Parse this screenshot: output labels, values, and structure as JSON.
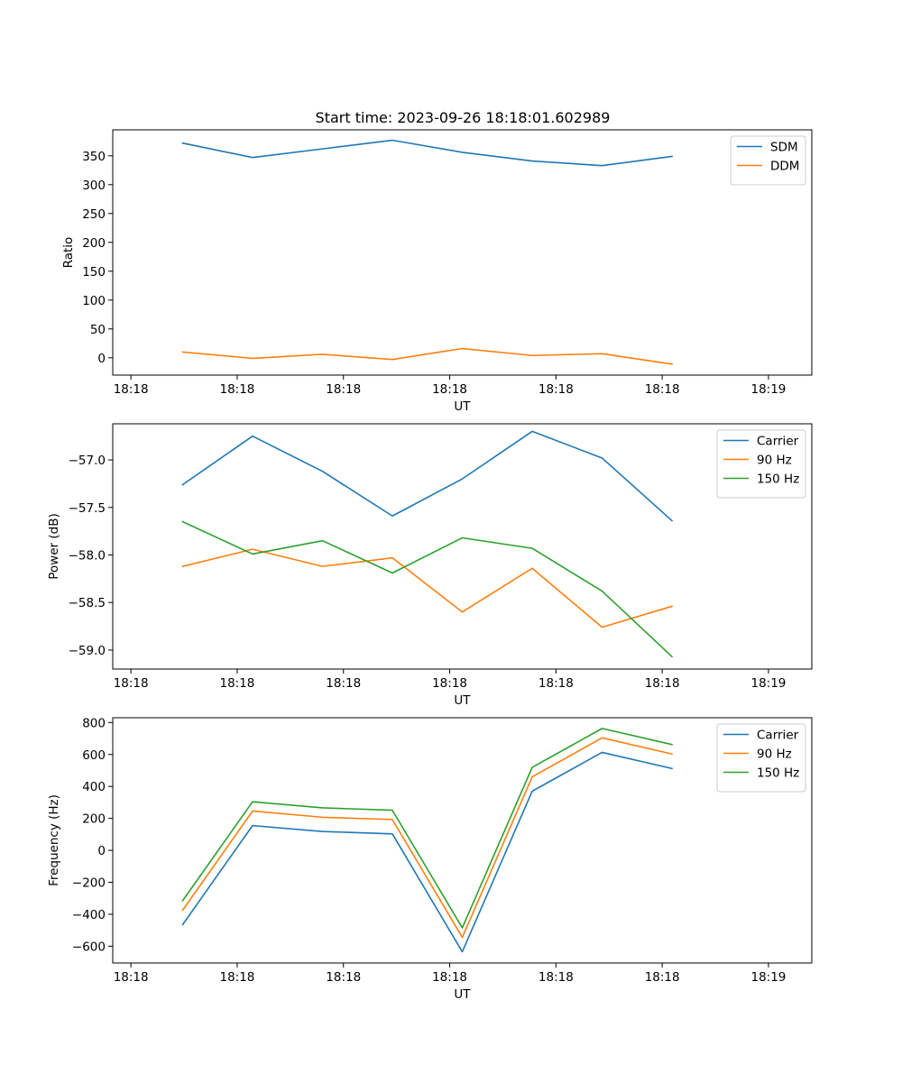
{
  "figure_title": "Start time: 2023-09-26 18:18:01.602989",
  "chart_data": [
    {
      "type": "line",
      "title": "Start time: 2023-09-26 18:18:01.602989",
      "xlabel": "UT",
      "ylabel": "Ratio",
      "x": [
        1,
        2,
        3,
        4,
        5,
        6,
        7,
        8
      ],
      "xlim": [
        0,
        10
      ],
      "x_ticks": [
        0.26,
        1.78,
        3.3,
        4.82,
        6.34,
        7.86,
        9.38
      ],
      "x_tick_labels": [
        "18:18",
        "18:18",
        "18:18",
        "18:18",
        "18:18",
        "18:18",
        "18:19"
      ],
      "ylim": [
        -30,
        395
      ],
      "y_ticks": [
        0,
        50,
        100,
        150,
        200,
        250,
        300,
        350
      ],
      "y_tick_labels": [
        "0",
        "50",
        "100",
        "150",
        "200",
        "250",
        "300",
        "350"
      ],
      "legend": "top-right",
      "series": [
        {
          "name": "SDM",
          "color": "#1f77b4",
          "values": [
            372,
            347,
            362,
            377,
            356,
            341,
            333,
            349
          ]
        },
        {
          "name": "DDM",
          "color": "#ff7f0e",
          "values": [
            10,
            -1,
            6,
            -3,
            16,
            4,
            7,
            -11
          ]
        }
      ]
    },
    {
      "type": "line",
      "title": "",
      "xlabel": "UT",
      "ylabel": "Power (dB)",
      "x": [
        1,
        2,
        3,
        4,
        5,
        6,
        7,
        8
      ],
      "xlim": [
        0,
        10
      ],
      "x_ticks": [
        0.26,
        1.78,
        3.3,
        4.82,
        6.34,
        7.86,
        9.38
      ],
      "x_tick_labels": [
        "18:18",
        "18:18",
        "18:18",
        "18:18",
        "18:18",
        "18:18",
        "18:19"
      ],
      "ylim": [
        -59.2,
        -56.62
      ],
      "y_ticks": [
        -59.0,
        -58.5,
        -58.0,
        -57.5,
        -57.0
      ],
      "y_tick_labels": [
        "−59.0",
        "−58.5",
        "−58.0",
        "−57.5",
        "−57.0"
      ],
      "legend": "top-right",
      "series": [
        {
          "name": "Carrier",
          "color": "#1f77b4",
          "values": [
            -57.26,
            -56.75,
            -57.12,
            -57.59,
            -57.2,
            -56.7,
            -56.98,
            -57.64
          ]
        },
        {
          "name": "90 Hz",
          "color": "#ff7f0e",
          "values": [
            -58.12,
            -57.94,
            -58.12,
            -58.03,
            -58.6,
            -58.14,
            -58.76,
            -58.54
          ]
        },
        {
          "name": "150 Hz",
          "color": "#2ca02c",
          "values": [
            -57.65,
            -57.99,
            -57.85,
            -58.19,
            -57.82,
            -57.93,
            -58.38,
            -59.07
          ]
        }
      ]
    },
    {
      "type": "line",
      "title": "",
      "xlabel": "UT",
      "ylabel": "Frequency (Hz)",
      "x": [
        1,
        2,
        3,
        4,
        5,
        6,
        7,
        8
      ],
      "xlim": [
        0,
        10
      ],
      "x_ticks": [
        0.26,
        1.78,
        3.3,
        4.82,
        6.34,
        7.86,
        9.38
      ],
      "x_tick_labels": [
        "18:18",
        "18:18",
        "18:18",
        "18:18",
        "18:18",
        "18:18",
        "18:19"
      ],
      "ylim": [
        -705,
        830
      ],
      "y_ticks": [
        -600,
        -400,
        -200,
        0,
        200,
        400,
        600,
        800
      ],
      "y_tick_labels": [
        "−600",
        "−400",
        "−200",
        "0",
        "200",
        "400",
        "600",
        "800"
      ],
      "legend": "top-right",
      "series": [
        {
          "name": "Carrier",
          "color": "#1f77b4",
          "values": [
            -465,
            155,
            118,
            103,
            -635,
            370,
            613,
            512
          ]
        },
        {
          "name": "90 Hz",
          "color": "#ff7f0e",
          "values": [
            -375,
            246,
            207,
            193,
            -545,
            460,
            704,
            603
          ]
        },
        {
          "name": "150 Hz",
          "color": "#2ca02c",
          "values": [
            -315,
            304,
            266,
            251,
            -485,
            519,
            763,
            662
          ]
        }
      ]
    }
  ]
}
